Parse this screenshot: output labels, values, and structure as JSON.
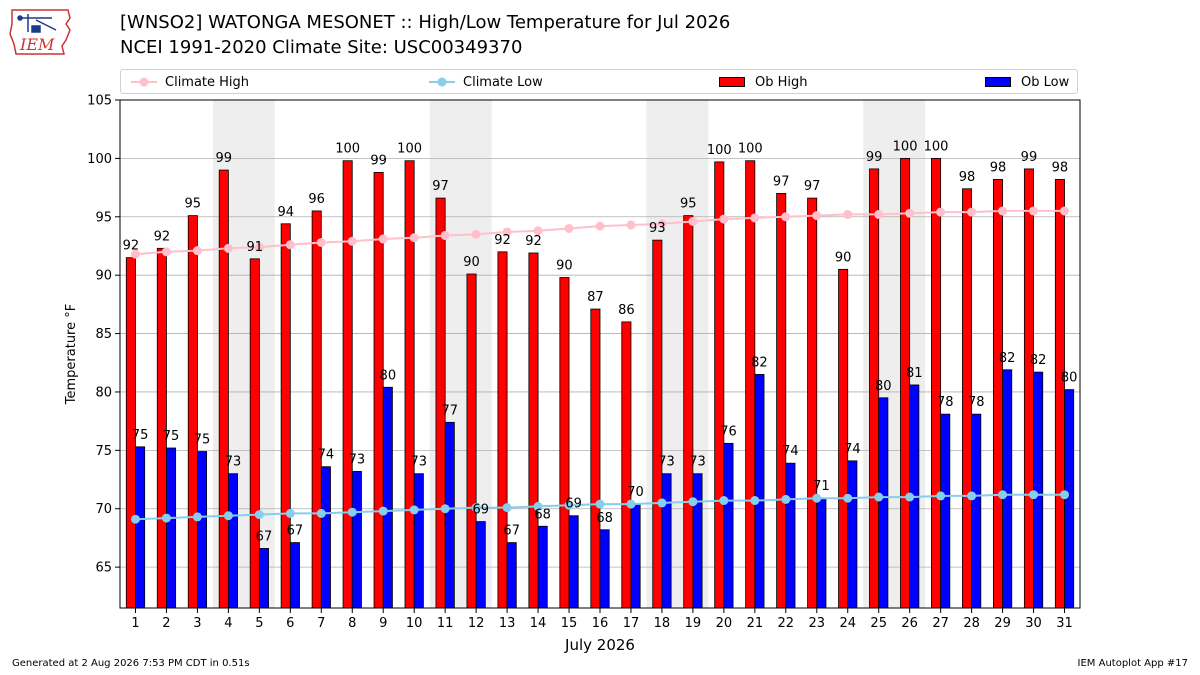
{
  "header": {
    "title_line1": "[WNSO2] WATONGA MESONET :: High/Low Temperature for Jul 2026",
    "title_line2": "NCEI 1991-2020 Climate Site: USC00349370",
    "logo_text": "IEM"
  },
  "footer": {
    "generated": "Generated at 2 Aug 2026 7:53 PM CDT in 0.51s",
    "app": "IEM Autoplot App #17"
  },
  "colors": {
    "ob_high": "#ff0000",
    "ob_low": "#0000ff",
    "climate_high": "#ffc0cb",
    "climate_low": "#87ceeb",
    "weekend_shade": "#eeeeee",
    "grid": "#b0b0b0"
  },
  "chart_data": {
    "type": "bar",
    "xlabel": "July 2026",
    "ylabel": "Temperature °F",
    "ylim": [
      61.5,
      105
    ],
    "yticks": [
      65,
      70,
      75,
      80,
      85,
      90,
      95,
      100,
      105
    ],
    "grid": true,
    "legend_position": "top",
    "categories": [
      "1",
      "2",
      "3",
      "4",
      "5",
      "6",
      "7",
      "8",
      "9",
      "10",
      "11",
      "12",
      "13",
      "14",
      "15",
      "16",
      "17",
      "18",
      "19",
      "20",
      "21",
      "22",
      "23",
      "24",
      "25",
      "26",
      "27",
      "28",
      "29",
      "30",
      "31"
    ],
    "shaded_day_ranges": [
      [
        4,
        5
      ],
      [
        11,
        12
      ],
      [
        18,
        19
      ],
      [
        25,
        26
      ]
    ],
    "series": [
      {
        "name": "Ob High",
        "kind": "bar",
        "values": [
          92,
          92,
          95,
          99,
          91,
          94,
          96,
          100,
          99,
          100,
          97,
          90,
          92,
          92,
          90,
          87,
          86,
          93,
          95,
          100,
          100,
          97,
          97,
          90,
          99,
          100,
          100,
          98,
          98,
          99,
          98
        ],
        "plotted": [
          91.5,
          92.3,
          95.1,
          99.0,
          91.4,
          94.4,
          95.5,
          99.8,
          98.8,
          99.8,
          96.6,
          90.1,
          92.0,
          91.9,
          89.8,
          87.1,
          86.0,
          93.0,
          95.1,
          99.7,
          99.8,
          97.0,
          96.6,
          90.5,
          99.1,
          100.0,
          100.0,
          97.4,
          98.2,
          99.1,
          98.2
        ]
      },
      {
        "name": "Ob Low",
        "kind": "bar",
        "values": [
          75,
          75,
          75,
          73,
          67,
          67,
          74,
          73,
          80,
          73,
          77,
          69,
          67,
          68,
          69,
          68,
          70,
          73,
          73,
          76,
          82,
          74,
          71,
          74,
          80,
          81,
          78,
          78,
          82,
          82,
          80
        ],
        "plotted": [
          75.3,
          75.2,
          74.9,
          73.0,
          66.6,
          67.1,
          73.6,
          73.2,
          80.4,
          73.0,
          77.4,
          68.9,
          67.1,
          68.5,
          69.4,
          68.2,
          70.4,
          73.0,
          73.0,
          75.6,
          81.5,
          73.9,
          70.9,
          74.1,
          79.5,
          80.6,
          78.1,
          78.1,
          81.9,
          81.7,
          80.2
        ]
      },
      {
        "name": "Climate High",
        "kind": "line",
        "values": [
          91.8,
          92.0,
          92.1,
          92.3,
          92.4,
          92.6,
          92.8,
          92.9,
          93.1,
          93.2,
          93.4,
          93.5,
          93.7,
          93.8,
          94.0,
          94.2,
          94.3,
          94.4,
          94.6,
          94.8,
          94.9,
          95.0,
          95.1,
          95.2,
          95.2,
          95.3,
          95.4,
          95.4,
          95.5,
          95.5,
          95.5
        ]
      },
      {
        "name": "Climate Low",
        "kind": "line",
        "values": [
          69.1,
          69.2,
          69.3,
          69.4,
          69.5,
          69.6,
          69.6,
          69.7,
          69.8,
          69.9,
          70.0,
          70.1,
          70.1,
          70.2,
          70.3,
          70.4,
          70.4,
          70.5,
          70.6,
          70.7,
          70.7,
          70.8,
          70.9,
          70.9,
          71.0,
          71.0,
          71.1,
          71.1,
          71.2,
          71.2,
          71.2
        ]
      }
    ]
  }
}
